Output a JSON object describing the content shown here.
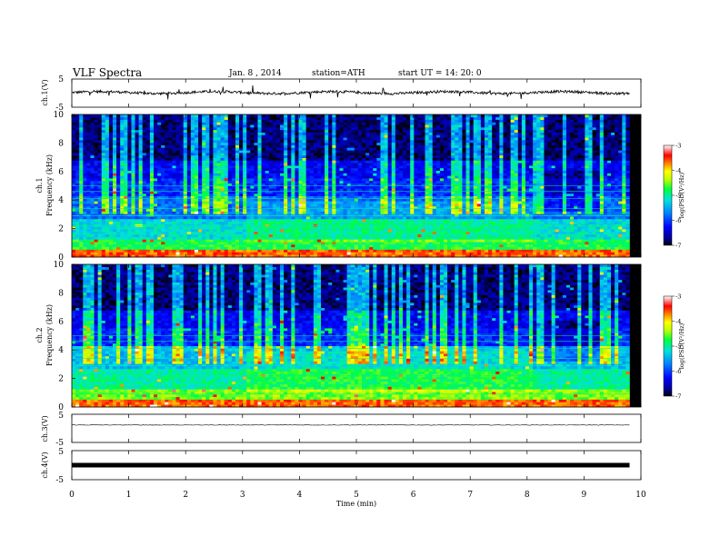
{
  "header": {
    "title": "VLF Spectra",
    "date": "Jan. 8 , 2014",
    "station": "station=ATH",
    "start_time": "start UT = 14: 20: 0"
  },
  "chart_data": [
    {
      "type": "line",
      "name": "ch1-waveform",
      "ylabel": "ch.1(V)",
      "ylim": [
        -5,
        5
      ],
      "yticks": [
        "5",
        "-5"
      ],
      "xlim": [
        0,
        10
      ],
      "trace_level_v": 0.2
    },
    {
      "type": "heatmap",
      "name": "ch1-spectrogram",
      "ylabel": "ch.1\nFrequency (kHz)",
      "ylabel_line1": "ch.1",
      "ylabel_line2": "Frequency (kHz)",
      "ylim": [
        0,
        10
      ],
      "yticks": [
        "0",
        "2",
        "4",
        "6",
        "8",
        "10"
      ],
      "xlim": [
        0,
        10
      ],
      "data_end_min": 9.8,
      "colorbar": {
        "label": "log(PSD(V²/Hz)",
        "ticks": [
          "-3",
          "-4",
          "-5",
          "-6",
          "-7"
        ],
        "range": [
          -7,
          -3
        ]
      }
    },
    {
      "type": "heatmap",
      "name": "ch2-spectrogram",
      "ylabel_line1": "ch.2",
      "ylabel_line2": "Frequency (kHz)",
      "ylim": [
        0,
        10
      ],
      "yticks": [
        "0",
        "2",
        "4",
        "6",
        "8",
        "10"
      ],
      "xlim": [
        0,
        10
      ],
      "data_end_min": 9.8,
      "colorbar": {
        "label": "log(PSD(V²/Hz)",
        "ticks": [
          "-3",
          "-4",
          "-5",
          "-6",
          "-7"
        ],
        "range": [
          -7,
          -3
        ]
      }
    },
    {
      "type": "line",
      "name": "ch3-waveform",
      "ylabel": "ch.3(V)",
      "ylim": [
        -5,
        5
      ],
      "yticks": [
        "5",
        "-5"
      ],
      "xlim": [
        0,
        10
      ],
      "trace_level_v": 1.2
    },
    {
      "type": "line",
      "name": "ch4-waveform",
      "ylabel": "ch.4(V)",
      "ylim": [
        -5,
        5
      ],
      "yticks": [
        "5",
        "-5"
      ],
      "xlim": [
        0,
        10
      ],
      "trace_level_v": 0.0
    }
  ],
  "xaxis": {
    "label": "Time (min)",
    "ticks": [
      "0",
      "1",
      "2",
      "3",
      "4",
      "5",
      "6",
      "7",
      "8",
      "9",
      "10"
    ],
    "range": [
      0,
      10
    ]
  }
}
